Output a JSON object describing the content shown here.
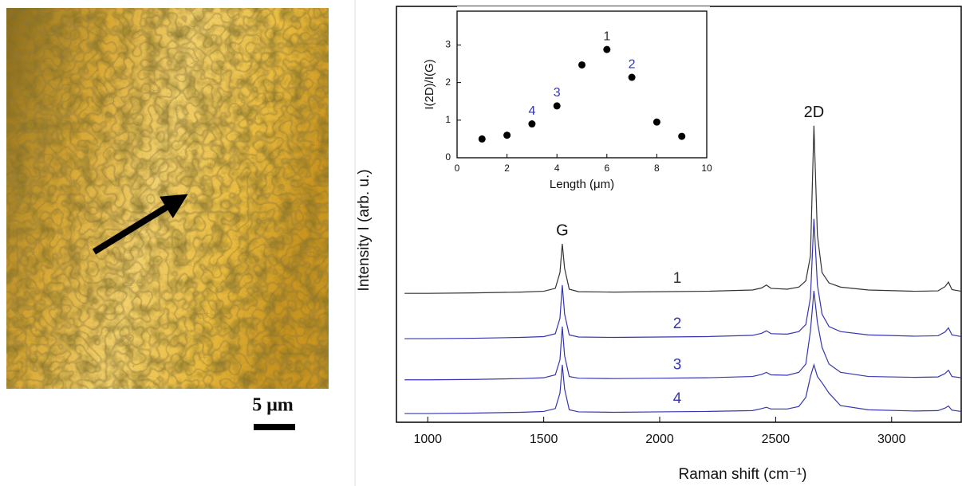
{
  "image": {
    "scale_bar_label": "5 μm"
  },
  "chart_data": [
    {
      "type": "line",
      "x_label": "Raman shift (cm⁻¹)",
      "y_label": "Intensity I (arb. u.)",
      "peak_labels": [
        "G",
        "2D"
      ],
      "x": [
        900,
        1000,
        1200,
        1400,
        1500,
        1550,
        1570,
        1580,
        1590,
        1610,
        1650,
        1800,
        2000,
        2200,
        2400,
        2440,
        2460,
        2480,
        2550,
        2600,
        2630,
        2650,
        2665,
        2680,
        2700,
        2730,
        2780,
        2900,
        3100,
        3200,
        3230,
        3245,
        3260,
        3300
      ],
      "xlim": [
        865,
        3300
      ],
      "xticks": [
        1000,
        1500,
        2000,
        2500,
        3000
      ],
      "ylim": [
        0,
        100
      ],
      "series": [
        {
          "name": "1",
          "color": "#333333",
          "values": [
            31,
            31,
            31.1,
            31.3,
            31.5,
            32.2,
            36,
            42.9,
            37,
            32,
            31.4,
            31.3,
            31.4,
            31.5,
            31.8,
            32.3,
            33,
            32.2,
            32,
            32.5,
            34,
            40,
            71.3,
            45,
            36,
            33.5,
            32.5,
            31.8,
            31.5,
            31.6,
            32.6,
            33.7,
            31.9,
            31.5
          ]
        },
        {
          "name": "2",
          "color": "#3535b0",
          "values": [
            20.1,
            20.1,
            20.2,
            20.4,
            20.6,
            21.3,
            25,
            33,
            26,
            21,
            20.5,
            20.4,
            20.5,
            20.6,
            20.9,
            21.4,
            22,
            21.3,
            21.2,
            21.8,
            23.5,
            30,
            48.9,
            33,
            26,
            23,
            21.8,
            21,
            20.7,
            20.8,
            21.7,
            22.7,
            21,
            20.6
          ]
        },
        {
          "name": "3",
          "color": "#3535b0",
          "values": [
            10.2,
            10.2,
            10.3,
            10.5,
            10.7,
            11.4,
            15,
            23,
            16,
            11,
            10.6,
            10.5,
            10.6,
            10.7,
            11,
            11.5,
            12,
            11.4,
            11.3,
            12,
            14,
            22,
            31.6,
            24,
            18,
            14,
            12,
            11,
            10.8,
            10.9,
            11.7,
            12.5,
            11,
            10.7
          ]
        },
        {
          "name": "4",
          "color": "#3535b0",
          "values": [
            2.1,
            2.1,
            2.2,
            2.4,
            2.6,
            3.3,
            7,
            13.8,
            8,
            3,
            2.5,
            2.4,
            2.5,
            2.6,
            2.8,
            3.3,
            3.6,
            3.2,
            3.2,
            3.8,
            6,
            11,
            13.8,
            11,
            9.5,
            7,
            4,
            3,
            2.7,
            2.8,
            3.4,
            3.9,
            2.9,
            2.6
          ]
        }
      ]
    },
    {
      "type": "scatter",
      "x_label": "Length (μm)",
      "y_label": "I(2D)/I(G)",
      "x": [
        1,
        2,
        3,
        4,
        5,
        6,
        7,
        8,
        9
      ],
      "values": [
        0.5,
        0.6,
        0.9,
        1.38,
        2.47,
        2.88,
        2.14,
        0.95,
        0.57
      ],
      "point_labels": [
        null,
        null,
        "4",
        "3",
        null,
        "1",
        "2",
        null,
        null
      ],
      "color": "#000000",
      "xlim": [
        0,
        10
      ],
      "xticks": [
        0,
        2,
        4,
        6,
        8,
        10
      ],
      "ylim": [
        0,
        3.9
      ],
      "yticks": [
        0,
        1,
        2,
        3
      ]
    }
  ]
}
